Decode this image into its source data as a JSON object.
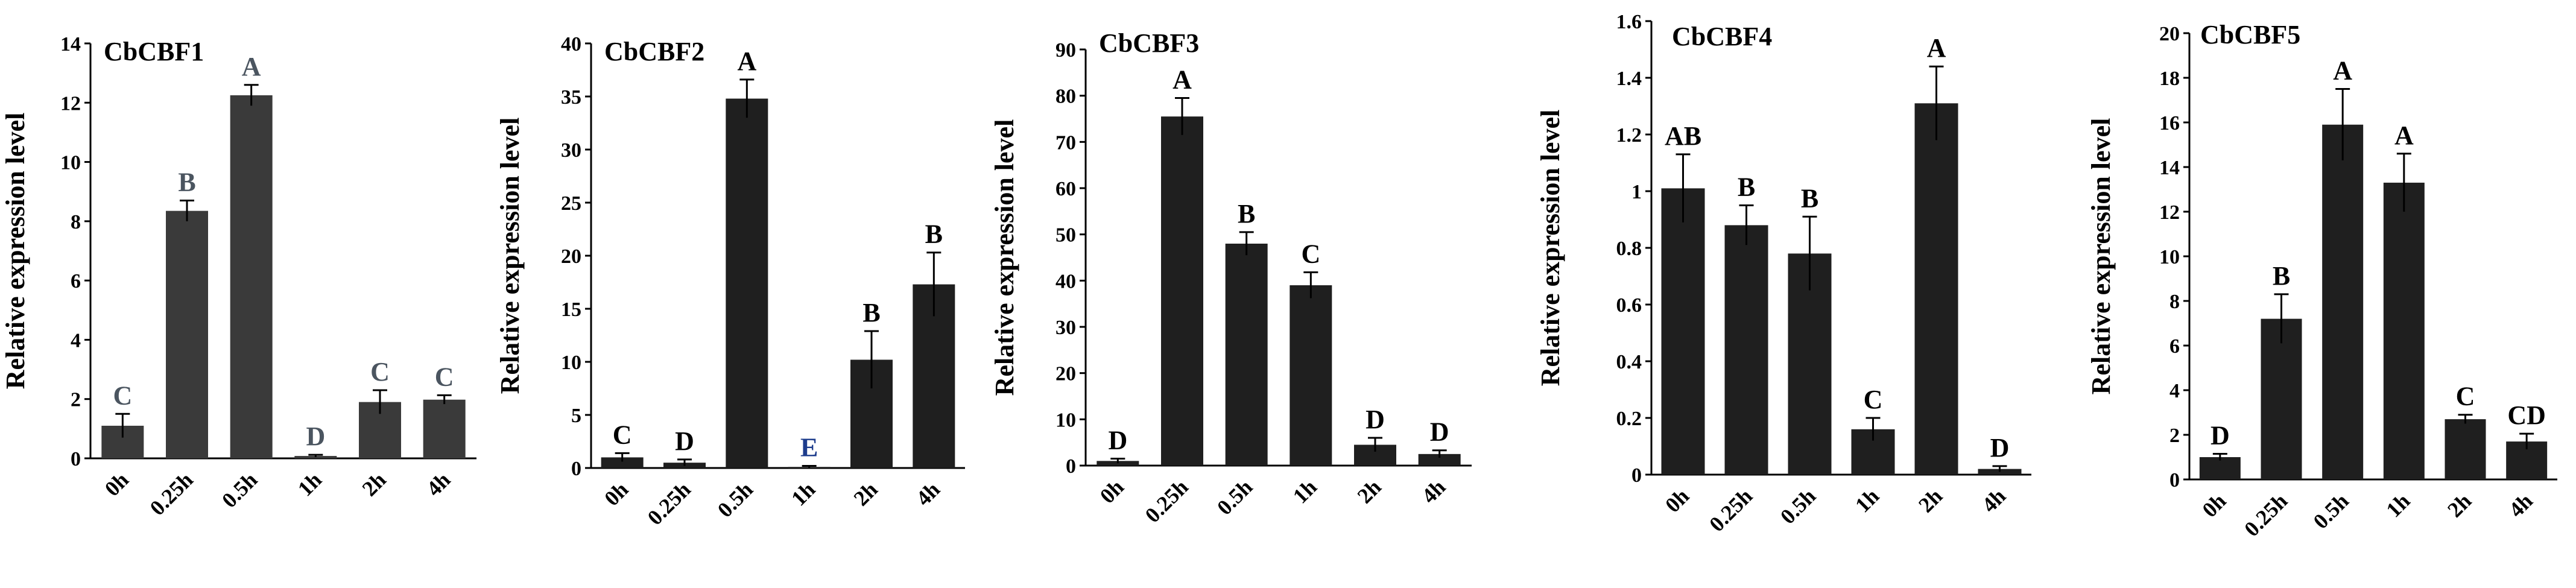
{
  "chart_data": [
    {
      "type": "bar",
      "title": "CbCBF1",
      "ylabel": "Relative expression level",
      "categories": [
        "0h",
        "0.25h",
        "0.5h",
        "1h",
        "2h",
        "4h"
      ],
      "values": [
        1.1,
        8.35,
        12.25,
        0.08,
        1.9,
        1.98
      ],
      "errors": [
        0.4,
        0.35,
        0.35,
        0.04,
        0.4,
        0.15
      ],
      "letters": [
        "C",
        "B",
        "A",
        "D",
        "C",
        "C"
      ],
      "ylim": [
        0,
        14
      ],
      "yticks": [
        "0",
        "2",
        "4",
        "6",
        "8",
        "10",
        "12",
        "14"
      ],
      "grid": false,
      "colors": {
        "bar": "#3a3a3a",
        "letter": "#4b5560"
      }
    },
    {
      "type": "bar",
      "title": "CbCBF2",
      "ylabel": "Relative expression level",
      "categories": [
        "0h",
        "0.25h",
        "0.5h",
        "1h",
        "2h",
        "4h"
      ],
      "values": [
        1.0,
        0.5,
        34.8,
        0.1,
        10.2,
        17.3
      ],
      "errors": [
        0.4,
        0.3,
        1.8,
        0.1,
        2.7,
        3.0
      ],
      "letters": [
        "C",
        "D",
        "A",
        "E",
        "B",
        "B"
      ],
      "ylim": [
        0,
        40
      ],
      "yticks": [
        "0",
        "5",
        "10",
        "15",
        "20",
        "25",
        "30",
        "35",
        "40"
      ],
      "grid": false,
      "colors": {
        "bar": "#1f1f1f",
        "letter": "#000000",
        "letter_e": "#1d3c8c"
      }
    },
    {
      "type": "bar",
      "title": "CbCBF3",
      "ylabel": "Relative expression level",
      "categories": [
        "0h",
        "0.25h",
        "0.5h",
        "1h",
        "2h",
        "4h"
      ],
      "values": [
        1.0,
        75.5,
        48.0,
        39.0,
        4.5,
        2.5
      ],
      "errors": [
        0.5,
        4.0,
        2.5,
        2.8,
        1.5,
        0.8
      ],
      "letters": [
        "D",
        "A",
        "B",
        "C",
        "D",
        "D"
      ],
      "ylim": [
        0,
        90
      ],
      "yticks": [
        "0",
        "10",
        "20",
        "30",
        "40",
        "50",
        "60",
        "70",
        "80",
        "90"
      ],
      "grid": false,
      "colors": {
        "bar": "#1f1f1f",
        "letter": "#000000"
      }
    },
    {
      "type": "bar",
      "title": "CbCBF4",
      "ylabel": "Relative expression level",
      "categories": [
        "0h",
        "0.25h",
        "0.5h",
        "1h",
        "2h",
        "4h"
      ],
      "values": [
        1.01,
        0.88,
        0.78,
        0.16,
        1.31,
        0.02
      ],
      "errors": [
        0.12,
        0.07,
        0.13,
        0.04,
        0.13,
        0.01
      ],
      "letters": [
        "AB",
        "B",
        "B",
        "C",
        "A",
        "D"
      ],
      "ylim": [
        0,
        1.6
      ],
      "yticks": [
        "0",
        "0.2",
        "0.4",
        "0.6",
        "0.8",
        "1",
        "1.2",
        "1.4",
        "1.6"
      ],
      "grid": false,
      "colors": {
        "bar": "#1f1f1f",
        "letter": "#000000"
      }
    },
    {
      "type": "bar",
      "title": "CbCBF5",
      "ylabel": "Relative expression level",
      "categories": [
        "0h",
        "0.25h",
        "0.5h",
        "1h",
        "2h",
        "4h"
      ],
      "values": [
        1.0,
        7.2,
        15.9,
        13.3,
        2.7,
        1.7
      ],
      "errors": [
        0.15,
        1.1,
        1.6,
        1.3,
        0.2,
        0.35
      ],
      "letters": [
        "D",
        "B",
        "A",
        "A",
        "C",
        "CD"
      ],
      "ylim": [
        0,
        20
      ],
      "yticks": [
        "0",
        "2",
        "4",
        "6",
        "8",
        "10",
        "12",
        "14",
        "16",
        "18",
        "20"
      ],
      "grid": false,
      "colors": {
        "bar": "#1f1f1f",
        "letter": "#000000"
      }
    }
  ]
}
